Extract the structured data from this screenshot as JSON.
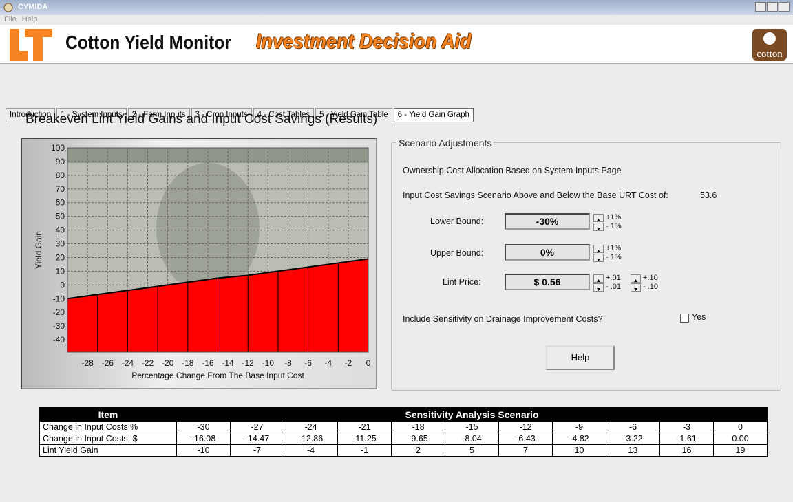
{
  "window": {
    "title": "CYMIDA",
    "menu": [
      "File",
      "Help"
    ]
  },
  "header": {
    "title": "Cotton Yield Monitor",
    "subtitle": "Investment Decision Aid",
    "logo_text": "cotton"
  },
  "tabs": {
    "items": [
      "Introduction",
      "1 - System Inputs",
      "2 - Farm Inputs",
      "3 - Crop Inputs",
      "4 - Cost Tables",
      "5 - Yield Gain Table",
      "6 - Yield Gain Graph"
    ],
    "active": 6
  },
  "heading": "Breakeven Lint Yield Gains and Input Cost Savings (Results)",
  "chart_data": {
    "type": "area",
    "x": [
      -30,
      -27,
      -24,
      -21,
      -18,
      -15,
      -12,
      -9,
      -6,
      -3,
      0
    ],
    "values": [
      -10,
      -7,
      -4,
      -1,
      2,
      5,
      7,
      10,
      13,
      16,
      19
    ],
    "color": "#ff0000",
    "line_color": "#000000",
    "xlabel": "Percentage Change From The Base Input Cost",
    "ylabel": "Yield Gain",
    "xlim": [
      -30,
      0
    ],
    "ylim": [
      -49,
      100
    ],
    "xticks": [
      -28,
      -26,
      -24,
      -22,
      -20,
      -18,
      -16,
      -14,
      -12,
      -10,
      -8,
      -6,
      -4,
      -2,
      0
    ],
    "yticks": [
      -40,
      -30,
      -20,
      -10,
      0,
      10,
      20,
      30,
      40,
      50,
      60,
      70,
      80,
      90,
      100
    ],
    "grid": true
  },
  "scenario": {
    "title": "Scenario Adjustments",
    "allocation_note": "Ownership Cost Allocation Based on System Inputs Page",
    "base_cost_label": "Input Cost Savings Scenario Above and Below the Base URT Cost of:",
    "base_cost": "53.6",
    "lower_bound": {
      "label": "Lower Bound:",
      "value": "-30%",
      "up": "+1%",
      "down": "- 1%"
    },
    "upper_bound": {
      "label": "Upper Bound:",
      "value": "0%",
      "up": "+1%",
      "down": "- 1%"
    },
    "lint_price": {
      "label": "Lint Price:",
      "value": "$ 0.56",
      "up_small": "+.01",
      "down_small": "- .01",
      "up_large": "+.10",
      "down_large": "- .10"
    },
    "drainage": {
      "question": "Include Sensitivity on Drainage Improvement Costs?",
      "checkbox_label": "Yes",
      "checked": false
    },
    "help_button": "Help"
  },
  "table": {
    "header": [
      "Item",
      "Sensitivity Analysis Scenario"
    ],
    "rows": [
      [
        "Change in Input Costs %",
        "-30",
        "-27",
        "-24",
        "-21",
        "-18",
        "-15",
        "-12",
        "-9",
        "-6",
        "-3",
        "0"
      ],
      [
        "Change in Input Costs, $",
        "-16.08",
        "-14.47",
        "-12.86",
        "-11.25",
        "-9.65",
        "-8.04",
        "-6.43",
        "-4.82",
        "-3.22",
        "-1.61",
        "0.00"
      ],
      [
        "Lint Yield Gain",
        "-10",
        "-7",
        "-4",
        "-1",
        "2",
        "5",
        "7",
        "10",
        "13",
        "16",
        "19"
      ]
    ]
  }
}
